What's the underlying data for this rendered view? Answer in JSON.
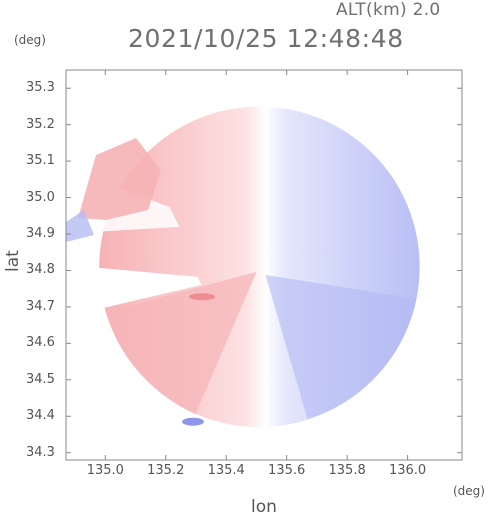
{
  "header": {
    "altitude": "ALT(km) 2.0",
    "datetime": "2021/10/25 12:48:48"
  },
  "axes": {
    "x_unit": "(deg)",
    "y_unit": "(deg)",
    "xlabel": "lon",
    "ylabel": "lat",
    "xlim": [
      134.87,
      136.18
    ],
    "ylim": [
      34.28,
      35.35
    ]
  },
  "chart_data": {
    "type": "heatmap",
    "title": "",
    "xlabel": "lon",
    "ylabel": "lat",
    "x_ticks": [
      "135.0",
      "135.2",
      "135.4",
      "135.6",
      "135.8",
      "136.0"
    ],
    "y_ticks": [
      "35.3",
      "35.2",
      "35.1",
      "35.0",
      "34.9",
      "34.8",
      "34.7",
      "34.6",
      "34.5",
      "34.4",
      "34.3"
    ],
    "x_tick_values": [
      135.0,
      135.2,
      135.4,
      135.6,
      135.8,
      136.0
    ],
    "y_tick_values": [
      35.3,
      35.2,
      35.1,
      35.0,
      34.9,
      34.8,
      34.7,
      34.6,
      34.5,
      34.4,
      34.3
    ],
    "radar_center": [
      135.51,
      34.81
    ],
    "radar_range_deg": 0.53,
    "colors": {
      "approaching": "#9fa6f2",
      "receding": "#f2a3a6",
      "neutral": "#ffffff",
      "frame": "#888888"
    }
  }
}
